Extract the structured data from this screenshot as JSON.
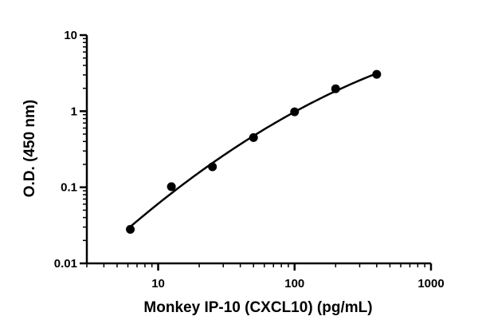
{
  "chart_data": {
    "type": "scatter",
    "title": "",
    "xlabel": "Monkey IP-10 (CXCL10) (pg/mL)",
    "ylabel": "O.D. (450 nm)",
    "x_scale": "log",
    "y_scale": "log",
    "xlim": [
      3,
      1000
    ],
    "ylim": [
      0.01,
      10
    ],
    "x_ticks": [
      10,
      100,
      1000
    ],
    "x_tick_labels": [
      "10",
      "100",
      "1000"
    ],
    "y_ticks": [
      0.01,
      0.1,
      1,
      10
    ],
    "y_tick_labels": [
      "0.01",
      "0.1",
      "1",
      "10"
    ],
    "grid": false,
    "legend": "none",
    "series": [
      {
        "x": [
          6.25,
          12.5,
          25,
          50,
          100,
          200,
          400
        ],
        "y": [
          0.028,
          0.102,
          0.186,
          0.45,
          0.98,
          1.97,
          3.05
        ],
        "fit_curve": true,
        "color": "#000000"
      }
    ]
  }
}
